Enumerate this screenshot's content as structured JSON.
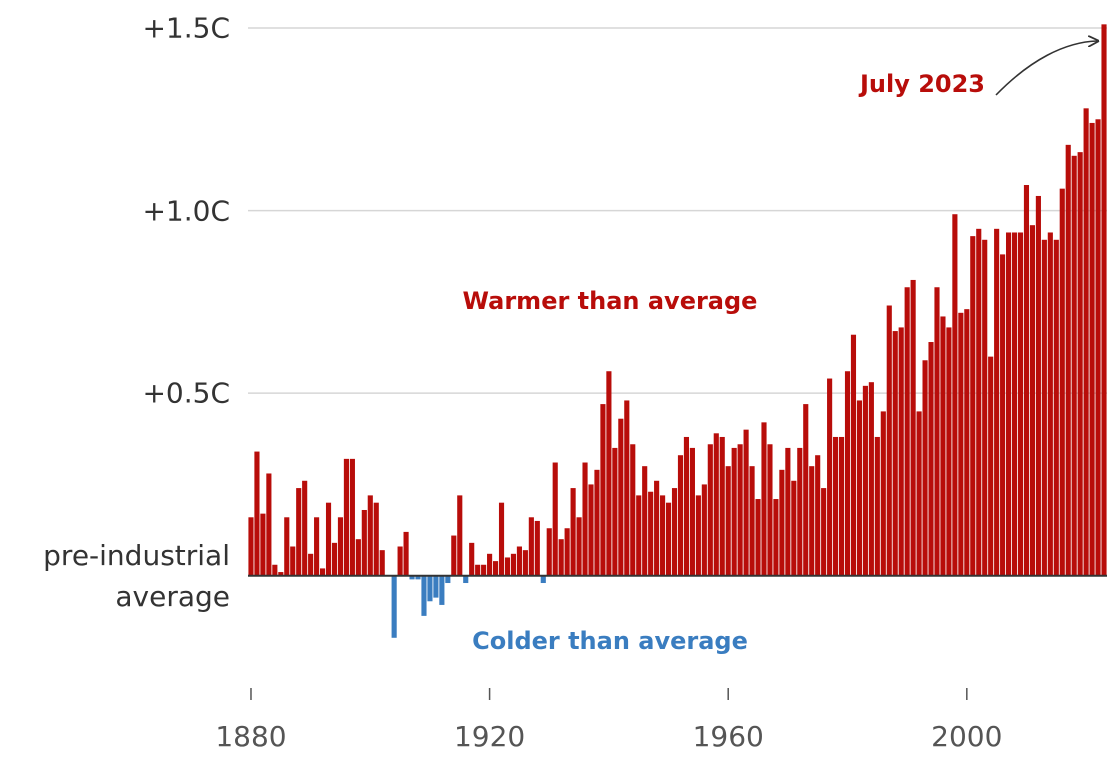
{
  "chart_data": {
    "type": "bar",
    "annotations": {
      "last": "July 2023",
      "positive": "Warmer than average",
      "negative": "Colder than average"
    },
    "x": [
      1880,
      1881,
      1882,
      1883,
      1884,
      1885,
      1886,
      1887,
      1888,
      1889,
      1890,
      1891,
      1892,
      1893,
      1894,
      1895,
      1896,
      1897,
      1898,
      1899,
      1900,
      1901,
      1902,
      1903,
      1904,
      1905,
      1906,
      1907,
      1908,
      1909,
      1910,
      1911,
      1912,
      1913,
      1914,
      1915,
      1916,
      1917,
      1918,
      1919,
      1920,
      1921,
      1922,
      1923,
      1924,
      1925,
      1926,
      1927,
      1928,
      1929,
      1930,
      1931,
      1932,
      1933,
      1934,
      1935,
      1936,
      1937,
      1938,
      1939,
      1940,
      1941,
      1942,
      1943,
      1944,
      1945,
      1946,
      1947,
      1948,
      1949,
      1950,
      1951,
      1952,
      1953,
      1954,
      1955,
      1956,
      1957,
      1958,
      1959,
      1960,
      1961,
      1962,
      1963,
      1964,
      1965,
      1966,
      1967,
      1968,
      1969,
      1970,
      1971,
      1972,
      1973,
      1974,
      1975,
      1976,
      1977,
      1978,
      1979,
      1980,
      1981,
      1982,
      1983,
      1984,
      1985,
      1986,
      1987,
      1988,
      1989,
      1990,
      1991,
      1992,
      1993,
      1994,
      1995,
      1996,
      1997,
      1998,
      1999,
      2000,
      2001,
      2002,
      2003,
      2004,
      2005,
      2006,
      2007,
      2008,
      2009,
      2010,
      2011,
      2012,
      2013,
      2014,
      2015,
      2016,
      2017,
      2018,
      2019,
      2020,
      2021,
      2022,
      2023
    ],
    "values": [
      0.16,
      0.34,
      0.17,
      0.28,
      0.03,
      0.01,
      0.16,
      0.08,
      0.24,
      0.26,
      0.06,
      0.16,
      0.02,
      0.2,
      0.09,
      0.16,
      0.32,
      0.32,
      0.1,
      0.18,
      0.22,
      0.2,
      0.07,
      0,
      -0.17,
      0.08,
      0.12,
      -0.01,
      -0.01,
      -0.11,
      -0.07,
      -0.06,
      -0.08,
      -0.02,
      0.11,
      0.22,
      -0.02,
      0.09,
      0.03,
      0.03,
      0.06,
      0.04,
      0.2,
      0.05,
      0.06,
      0.08,
      0.07,
      0.16,
      0.15,
      -0.02,
      0.13,
      0.31,
      0.1,
      0.13,
      0.24,
      0.16,
      0.31,
      0.25,
      0.29,
      0.47,
      0.56,
      0.35,
      0.43,
      0.48,
      0.36,
      0.22,
      0.3,
      0.23,
      0.26,
      0.22,
      0.2,
      0.24,
      0.33,
      0.38,
      0.35,
      0.22,
      0.25,
      0.36,
      0.39,
      0.38,
      0.3,
      0.35,
      0.36,
      0.4,
      0.3,
      0.21,
      0.42,
      0.36,
      0.21,
      0.29,
      0.35,
      0.26,
      0.35,
      0.47,
      0.3,
      0.33,
      0.24,
      0.54,
      0.38,
      0.38,
      0.56,
      0.66,
      0.48,
      0.52,
      0.53,
      0.38,
      0.45,
      0.74,
      0.67,
      0.68,
      0.79,
      0.81,
      0.45,
      0.59,
      0.64,
      0.79,
      0.71,
      0.68,
      0.99,
      0.72,
      0.73,
      0.93,
      0.95,
      0.92,
      0.6,
      0.95,
      0.88,
      0.94,
      0.94,
      0.94,
      1.07,
      0.96,
      1.04,
      0.92,
      0.94,
      0.92,
      1.06,
      1.18,
      1.15,
      1.16,
      1.28,
      1.24,
      1.25,
      1.51
    ],
    "colors": {
      "positive": "#b80d0a",
      "negative": "#3a7dc0"
    },
    "xlim": [
      1879.5,
      2023.5
    ],
    "xticks": [
      1880,
      1920,
      1960,
      2000
    ],
    "ylim": [
      -0.25,
      1.5
    ],
    "yticks": [
      {
        "value": 0,
        "label": "pre-industrial average"
      },
      {
        "value": 0.5,
        "label": "+0.5C"
      },
      {
        "value": 1.0,
        "label": "+1.0C"
      },
      {
        "value": 1.5,
        "label": "+1.5C"
      }
    ],
    "grid": true
  }
}
